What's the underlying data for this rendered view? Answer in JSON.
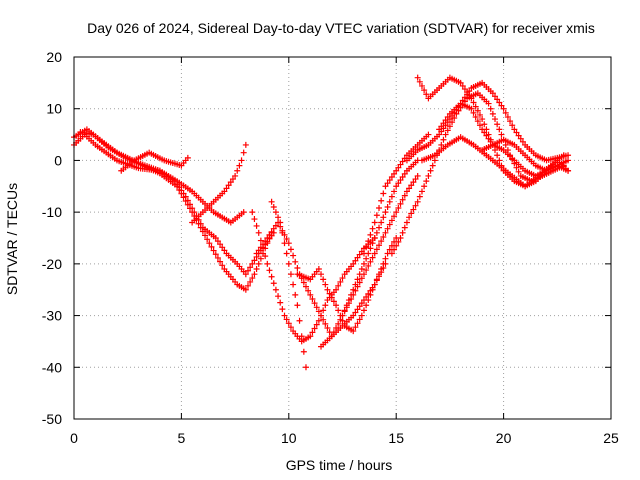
{
  "chart_data": {
    "type": "scatter",
    "title": "Day 026 of 2024, Sidereal Day-to-day VTEC variation (SDTVAR) for receiver xmis",
    "xlabel": "GPS time / hours",
    "ylabel": "SDTVAR / TECUs",
    "xlim": [
      0,
      25
    ],
    "ylim": [
      -50,
      20
    ],
    "x_ticks": [
      "0",
      "5",
      "10",
      "15",
      "20",
      "25"
    ],
    "y_ticks": [
      "20",
      "10",
      "0",
      "-10",
      "-20",
      "-30",
      "-40",
      "-50"
    ],
    "grid": true,
    "marker": "+",
    "color": "#ff0000",
    "series": [
      {
        "x": [
          0.0,
          0.6,
          1.2,
          2.0,
          3.0,
          4.0,
          4.8,
          5.5,
          6.5,
          7.3,
          7.9
        ],
        "y": [
          4.5,
          6.0,
          4.0,
          1.5,
          -0.5,
          -2.0,
          -4.0,
          -6.0,
          -10.0,
          -12.0,
          -10.0
        ]
      },
      {
        "x": [
          0.0,
          0.5,
          1.0,
          2.0,
          3.0,
          4.0,
          4.7,
          5.2,
          5.6,
          6.0,
          6.6,
          7.1,
          7.6,
          8.0,
          8.6,
          9.3
        ],
        "y": [
          3.0,
          5.0,
          3.0,
          0.0,
          -1.5,
          -2.0,
          -4.0,
          -7.0,
          -10.0,
          -13.0,
          -15.0,
          -18.0,
          -20.0,
          -22.0,
          -18.0,
          -14.0
        ]
      },
      {
        "x": [
          0.3,
          0.9,
          1.6,
          2.4,
          3.2,
          4.0,
          4.8,
          5.5,
          6.3,
          7.0,
          7.6,
          8.0,
          8.4,
          8.8,
          9.2
        ],
        "y": [
          5.5,
          5.0,
          2.5,
          0.5,
          -1.0,
          -2.5,
          -5.0,
          -10.0,
          -16.0,
          -21.0,
          -24.0,
          -25.0,
          -22.0,
          -18.0,
          -14.0
        ]
      },
      {
        "x": [
          2.2,
          2.8,
          3.5,
          4.2,
          5.0,
          5.3
        ],
        "y": [
          -2.0,
          0.0,
          1.5,
          0.0,
          -1.0,
          0.5
        ]
      },
      {
        "x": [
          5.5,
          6.0,
          6.5,
          7.0,
          7.5,
          7.8,
          8.0
        ],
        "y": [
          -12.0,
          -10.0,
          -8.0,
          -6.0,
          -3.0,
          0.0,
          3.0
        ]
      },
      {
        "x": [
          8.3,
          8.6,
          9.0,
          9.4,
          9.8,
          10.2,
          10.6,
          11.0,
          11.4,
          11.8,
          12.2,
          12.6,
          13.0,
          13.5,
          14.0
        ],
        "y": [
          -10.0,
          -14.0,
          -20.0,
          -25.0,
          -30.0,
          -33.0,
          -35.0,
          -34.0,
          -31.0,
          -27.0,
          -25.0,
          -22.0,
          -20.0,
          -17.0,
          -15.0
        ]
      },
      {
        "x": [
          8.5,
          9.0,
          9.5,
          10.0,
          10.5,
          11.0,
          11.5,
          12.0,
          12.5,
          13.0,
          13.5,
          14.0,
          14.5
        ],
        "y": [
          -18.0,
          -15.0,
          -12.0,
          -16.0,
          -22.0,
          -26.0,
          -30.0,
          -34.0,
          -32.0,
          -30.0,
          -27.0,
          -24.0,
          -20.0
        ]
      },
      {
        "x": [
          9.2,
          9.6,
          10.0,
          10.4,
          10.8
        ],
        "y": [
          -8.0,
          -12.0,
          -20.0,
          -28.0,
          -40.0
        ]
      },
      {
        "x": [
          10.4,
          11.0,
          11.4,
          11.8,
          12.2,
          12.6,
          13.0,
          13.4,
          13.8,
          14.2,
          14.6,
          15.0
        ],
        "y": [
          -22.0,
          -23.0,
          -21.0,
          -25.0,
          -28.0,
          -32.0,
          -33.0,
          -30.0,
          -26.0,
          -22.0,
          -18.0,
          -15.0
        ]
      },
      {
        "x": [
          11.5,
          12.0,
          12.5,
          13.0,
          13.5,
          14.0,
          14.5,
          15.0,
          15.5,
          16.0
        ],
        "y": [
          -36.0,
          -34.0,
          -30.0,
          -26.0,
          -22.0,
          -18.0,
          -14.0,
          -10.0,
          -6.0,
          -3.0
        ]
      },
      {
        "x": [
          12.5,
          13.0,
          13.5,
          14.0,
          14.5,
          15.0,
          15.5,
          16.0
        ],
        "y": [
          -30.0,
          -25.0,
          -20.0,
          -15.0,
          -10.0,
          -5.0,
          -2.0,
          0.0
        ]
      },
      {
        "x": [
          13.5,
          14.0,
          14.5,
          15.0,
          15.5,
          16.0,
          16.5
        ],
        "y": [
          -18.0,
          -12.0,
          -5.0,
          -2.0,
          1.0,
          3.0,
          5.0
        ]
      },
      {
        "x": [
          14.8,
          15.2,
          15.6,
          16.0,
          16.4,
          16.8,
          17.3,
          17.8,
          18.3,
          18.8,
          19.3,
          19.8,
          20.3,
          20.8,
          21.3,
          21.8,
          22.3,
          22.8
        ],
        "y": [
          -18.0,
          -15.0,
          -11.0,
          -8.0,
          -4.0,
          0.0,
          5.0,
          9.0,
          12.0,
          13.0,
          11.0,
          6.0,
          1.0,
          -3.0,
          -4.0,
          -3.0,
          -2.0,
          -1.0
        ]
      },
      {
        "x": [
          15.5,
          16.0,
          16.5,
          17.0,
          17.5,
          18.0,
          18.5,
          19.0,
          19.5,
          20.0,
          20.5,
          21.0,
          21.5,
          22.0,
          22.5,
          23.0
        ],
        "y": [
          0.0,
          2.0,
          3.0,
          5.0,
          8.0,
          11.0,
          14.0,
          15.0,
          13.0,
          10.0,
          6.0,
          3.0,
          1.0,
          0.0,
          0.5,
          1.0
        ]
      },
      {
        "x": [
          16.0,
          16.5,
          17.0,
          17.5,
          18.0,
          18.5,
          19.0,
          19.5,
          20.0,
          20.5,
          21.0,
          21.5,
          22.0,
          22.5,
          23.0
        ],
        "y": [
          16.0,
          12.0,
          14.0,
          16.0,
          15.0,
          12.0,
          8.0,
          3.0,
          -2.0,
          -4.0,
          -5.0,
          -4.0,
          -2.0,
          -1.0,
          0.0
        ]
      },
      {
        "x": [
          16.2,
          16.8,
          17.4,
          18.0,
          18.6,
          19.2,
          19.8,
          20.4,
          21.0,
          21.6,
          22.2,
          22.8
        ],
        "y": [
          0.0,
          1.0,
          3.0,
          4.5,
          3.0,
          1.0,
          -1.0,
          -3.0,
          -5.0,
          -3.0,
          -1.0,
          1.0
        ]
      },
      {
        "x": [
          17.0,
          17.5,
          18.0,
          18.5,
          19.0,
          19.5,
          20.0,
          20.5,
          21.0,
          21.5,
          22.0,
          22.5,
          23.0
        ],
        "y": [
          6.0,
          9.0,
          11.0,
          10.0,
          6.0,
          3.0,
          2.0,
          0.0,
          -2.0,
          -3.0,
          -2.0,
          0.0,
          -2.0
        ]
      },
      {
        "x": [
          19.0,
          19.5,
          20.0,
          20.5,
          21.0,
          21.5,
          22.0,
          22.5,
          23.0
        ],
        "y": [
          2.0,
          3.0,
          4.0,
          3.0,
          1.0,
          -1.0,
          -2.0,
          -1.0,
          -2.0
        ]
      }
    ]
  }
}
